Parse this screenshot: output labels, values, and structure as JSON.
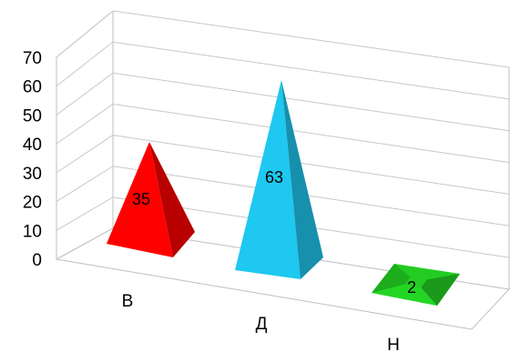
{
  "chart_data": {
    "type": "bar",
    "style": "3d-pyramid",
    "categories": [
      "В",
      "Д",
      "Н"
    ],
    "values": [
      35,
      63,
      2
    ],
    "colors": [
      "#ff0000",
      "#1ec8f0",
      "#22cc22"
    ],
    "ylim": [
      0,
      70
    ],
    "yticks": [
      "0",
      "10",
      "20",
      "30",
      "40",
      "50",
      "60",
      "70"
    ],
    "grid": true,
    "legend": "none",
    "data_labels": [
      "35",
      "63",
      "2"
    ],
    "title": "",
    "xlabel": "",
    "ylabel": ""
  }
}
